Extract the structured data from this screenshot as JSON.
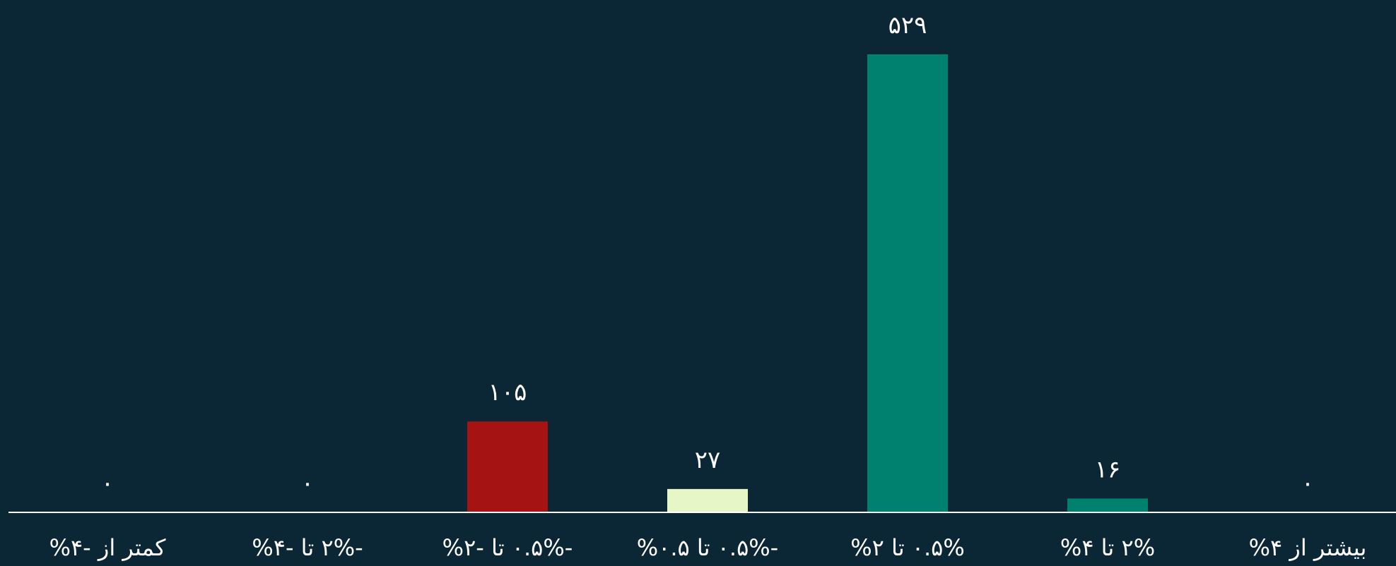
{
  "chart_data": {
    "type": "bar",
    "categories": [
      "کمتر از -۴%",
      "-۲% تا -۴%",
      "-۰.۵% تا -۲%",
      "-۰.۵% تا ۰.۵%",
      "۰.۵% تا ۲%",
      "۲% تا ۴%",
      "بیشتر از ۴%"
    ],
    "values": [
      0,
      0,
      105,
      27,
      529,
      16,
      0
    ],
    "value_labels": [
      "۰",
      "۰",
      "۱۰۵",
      "۲۷",
      "۵۲۹",
      "۱۶",
      "۰"
    ],
    "colors": [
      "#00806f",
      "#00806f",
      "#a51313",
      "#e7f6c6",
      "#00806f",
      "#00806f",
      "#00806f"
    ],
    "title": "",
    "xlabel": "",
    "ylabel": "",
    "ylim": [
      0,
      529
    ],
    "grid": false,
    "legend": "none",
    "background": "#0b2736",
    "axis_color": "#ffffff"
  }
}
